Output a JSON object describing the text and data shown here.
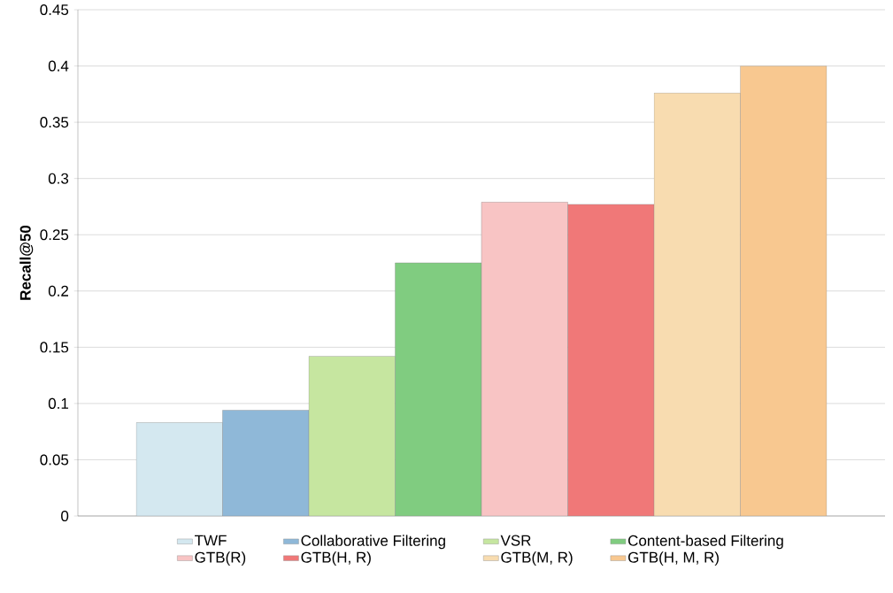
{
  "chart_data": {
    "type": "bar",
    "ylabel": "Recall@50",
    "categories": [
      null
    ],
    "series": [
      {
        "name": "TWF",
        "color": "#d4e8f0",
        "values": [
          0.083
        ]
      },
      {
        "name": "Collaborative Filtering",
        "color": "#8fb8d8",
        "values": [
          0.094
        ]
      },
      {
        "name": "VSR",
        "color": "#c6e6a0",
        "values": [
          0.142
        ]
      },
      {
        "name": "Content-based Filtering",
        "color": "#80cc80",
        "values": [
          0.225
        ]
      },
      {
        "name": "GTB(R)",
        "color": "#f8c4c4",
        "values": [
          0.279
        ]
      },
      {
        "name": "GTB(H, R)",
        "color": "#f07878",
        "values": [
          0.277
        ]
      },
      {
        "name": "GTB(M, R)",
        "color": "#f8dcb0",
        "values": [
          0.376
        ]
      },
      {
        "name": "GTB(H, M, R)",
        "color": "#f8c890",
        "values": [
          0.4
        ]
      }
    ],
    "ylim": [
      0,
      0.45
    ],
    "yticks": [
      0,
      0.05,
      0.1,
      0.15,
      0.2,
      0.25,
      0.3,
      0.35,
      0.4,
      0.45
    ],
    "grid": "y",
    "legend": "bottom"
  }
}
